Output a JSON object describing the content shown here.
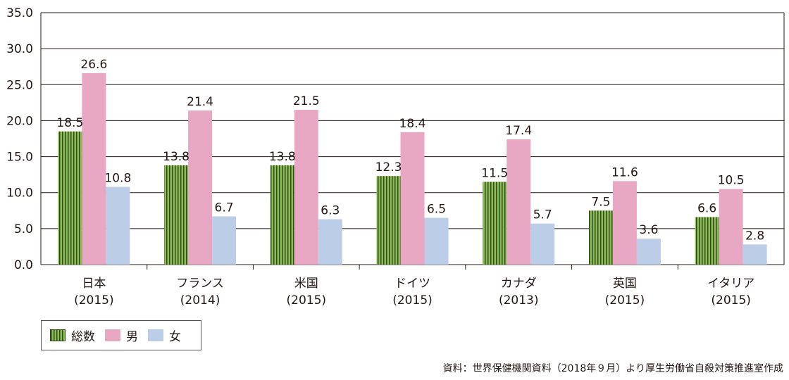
{
  "chart_data": {
    "type": "bar",
    "categories": [
      [
        "日本",
        "(2015)"
      ],
      [
        "フランス",
        "(2014)"
      ],
      [
        "米国",
        "(2015)"
      ],
      [
        "ドイツ",
        "(2015)"
      ],
      [
        "カナダ",
        "(2013)"
      ],
      [
        "英国",
        "(2015)"
      ],
      [
        "イタリア",
        "(2015)"
      ]
    ],
    "series": [
      {
        "name": "総数",
        "values": [
          18.5,
          13.8,
          13.8,
          12.3,
          11.5,
          7.5,
          6.6
        ],
        "color": "#8fbc5b"
      },
      {
        "name": "男",
        "values": [
          26.6,
          21.4,
          21.5,
          18.4,
          17.4,
          11.6,
          10.5
        ],
        "color": "#e8a7c2"
      },
      {
        "name": "女",
        "values": [
          10.8,
          6.7,
          6.3,
          6.5,
          5.7,
          3.6,
          2.8
        ],
        "color": "#bccde8"
      }
    ],
    "yticks": [
      "0.0",
      "5.0",
      "10.0",
      "15.0",
      "20.0",
      "25.0",
      "30.0",
      "35.0"
    ],
    "ylim": [
      0,
      35
    ],
    "grid": true,
    "legend_position": "bottom-left"
  },
  "source": "資料：世界保健機関資料（2018年９月）より厚生労働省自殺対策推進室作成"
}
